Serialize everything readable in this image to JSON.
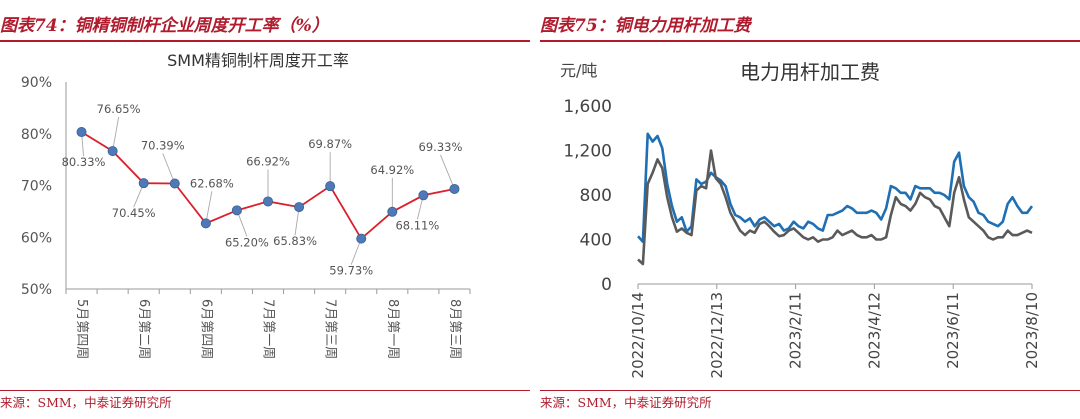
{
  "left": {
    "figure_title": "图表74：铜精铜制杆企业周度开工率（%）",
    "source": "来源：SMM，中泰证券研究所",
    "chart_data": {
      "type": "line",
      "title": "SMM精铜制杆周度开工率",
      "categories": [
        "5月第四周",
        "",
        "6月第二周",
        "",
        "6月第四周",
        "",
        "7月第一周",
        "",
        "7月第三周",
        "",
        "8月第一周",
        "",
        "8月第三周"
      ],
      "values": [
        80.33,
        76.65,
        70.45,
        70.39,
        62.68,
        65.2,
        66.92,
        65.83,
        69.87,
        59.73,
        64.92,
        68.11,
        69.33
      ],
      "data_labels": [
        "80.33%",
        "76.65%",
        "70.45%",
        "70.39%",
        "62.68%",
        "65.20%",
        "66.92%",
        "65.83%",
        "69.87%",
        "59.73%",
        "64.92%",
        "68.11%",
        "69.33%"
      ],
      "yticks": [
        "50%",
        "60%",
        "70%",
        "80%",
        "90%"
      ],
      "ylim": [
        50,
        90
      ],
      "line_color": "#d9202c",
      "marker_color": "#4e79b6",
      "grid": false
    }
  },
  "right": {
    "figure_title": "图表75：铜电力用杆加工费",
    "source": "来源：SMM，中泰证券研究所",
    "chart_data": {
      "type": "line",
      "title": "电力用杆加工费",
      "ylabel": "元/吨",
      "ylim": [
        0,
        1600
      ],
      "yticks": [
        "0",
        "400",
        "800",
        "1,200",
        "1,600"
      ],
      "xticks": [
        "2022/10/14",
        "2022/12/13",
        "2023/2/11",
        "2023/4/12",
        "2023/6/11",
        "2023/8/10"
      ],
      "x_start": "2022/10/14",
      "x_end": "2023/8/10",
      "series": [
        {
          "name": "",
          "color": "#1f6fb5",
          "values": [
            430,
            380,
            1350,
            1280,
            1330,
            1220,
            900,
            700,
            560,
            600,
            470,
            520,
            940,
            900,
            920,
            1000,
            960,
            930,
            880,
            720,
            620,
            600,
            560,
            590,
            520,
            580,
            600,
            560,
            520,
            540,
            480,
            500,
            560,
            520,
            500,
            560,
            540,
            500,
            480,
            620,
            620,
            640,
            660,
            700,
            680,
            640,
            640,
            640,
            660,
            640,
            580,
            680,
            880,
            860,
            820,
            820,
            760,
            880,
            860,
            860,
            860,
            820,
            820,
            800,
            760,
            1100,
            1180,
            880,
            780,
            740,
            640,
            620,
            560,
            540,
            520,
            560,
            720,
            780,
            700,
            640,
            640,
            700
          ]
        },
        {
          "name": "",
          "color": "#5a5a5a",
          "values": [
            220,
            180,
            900,
            1000,
            1120,
            1040,
            780,
            600,
            470,
            500,
            460,
            440,
            840,
            880,
            860,
            1200,
            950,
            900,
            780,
            640,
            560,
            480,
            440,
            480,
            460,
            540,
            560,
            520,
            470,
            430,
            440,
            480,
            500,
            460,
            420,
            400,
            420,
            380,
            400,
            400,
            420,
            480,
            440,
            460,
            480,
            440,
            420,
            420,
            440,
            400,
            400,
            420,
            620,
            780,
            720,
            700,
            660,
            720,
            820,
            780,
            760,
            700,
            680,
            600,
            520,
            820,
            960,
            760,
            600,
            560,
            520,
            480,
            420,
            400,
            420,
            420,
            480,
            440,
            440,
            460,
            480,
            460
          ]
        }
      ]
    }
  }
}
